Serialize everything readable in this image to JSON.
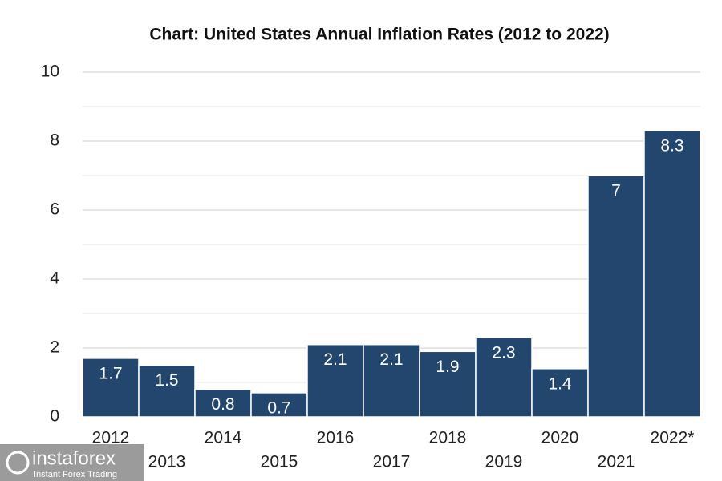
{
  "chart_data": {
    "type": "bar",
    "title": "Chart: United States Annual Inflation Rates (2012 to 2022)",
    "categories": [
      "2012",
      "2013",
      "2014",
      "2015",
      "2016",
      "2017",
      "2018",
      "2019",
      "2020",
      "2021",
      "2022*"
    ],
    "values": [
      1.7,
      1.5,
      0.8,
      0.7,
      2.1,
      2.1,
      1.9,
      2.3,
      1.4,
      7,
      8.3
    ],
    "color": "#23466f",
    "ylim": [
      0,
      10
    ],
    "yticks": [
      0,
      2,
      4,
      6,
      8,
      10
    ],
    "minor_yticks": [
      1,
      3,
      5,
      7,
      9
    ],
    "grid": true
  },
  "watermark": {
    "brand": "instaforex",
    "tagline": "Instant Forex Trading"
  }
}
